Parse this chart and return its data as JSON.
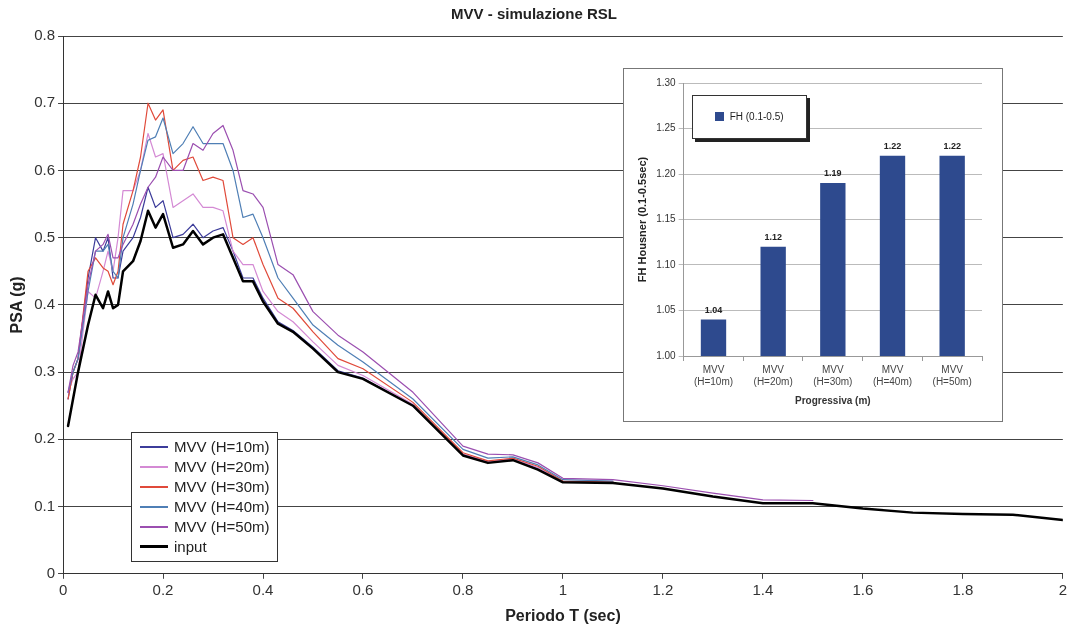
{
  "chart_data": [
    {
      "type": "line",
      "title": "MVV - simulazione RSL",
      "xlabel": "Periodo T (sec)",
      "ylabel": "PSA (g)",
      "x": [
        0.01,
        0.02,
        0.03,
        0.05,
        0.065,
        0.08,
        0.09,
        0.1,
        0.11,
        0.12,
        0.14,
        0.155,
        0.17,
        0.185,
        0.2,
        0.22,
        0.24,
        0.26,
        0.28,
        0.3,
        0.32,
        0.34,
        0.36,
        0.38,
        0.4,
        0.43,
        0.46,
        0.5,
        0.55,
        0.6,
        0.7,
        0.8,
        0.85,
        0.9,
        0.95,
        1.0,
        1.1,
        1.2,
        1.3,
        1.4,
        1.5,
        1.6,
        1.7,
        1.8,
        1.9,
        2.0
      ],
      "series": [
        {
          "name": "MVV (H=10m)",
          "color": "#3c3c9a",
          "values": [
            0.26,
            0.3,
            0.32,
            0.44,
            0.5,
            0.48,
            0.5,
            0.44,
            0.44,
            0.48,
            0.5,
            0.53,
            0.575,
            0.545,
            0.555,
            0.5,
            0.505,
            0.52,
            0.5,
            0.51,
            0.515,
            0.48,
            0.44,
            0.44,
            0.41,
            0.375,
            0.362,
            0.337,
            0.302,
            0.291,
            0.25,
            0.177,
            0.166,
            0.17,
            0.156,
            0.137,
            0.136,
            null,
            null,
            null,
            null,
            null,
            null,
            null,
            null,
            null
          ]
        },
        {
          "name": "MVV (H=20m)",
          "color": "#d48ad4",
          "values": [
            0.27,
            0.29,
            0.3,
            0.42,
            0.41,
            0.45,
            0.48,
            0.45,
            0.5,
            0.57,
            0.57,
            0.6,
            0.655,
            0.62,
            0.625,
            0.545,
            0.555,
            0.565,
            0.545,
            0.545,
            0.54,
            0.48,
            0.46,
            0.46,
            0.42,
            0.39,
            0.375,
            0.345,
            0.31,
            0.295,
            0.252,
            0.178,
            0.167,
            0.171,
            0.158,
            0.137,
            0.136,
            null,
            null,
            null,
            null,
            null,
            null,
            null,
            null,
            null
          ]
        },
        {
          "name": "MVV (H=30m)",
          "color": "#e04a3a",
          "values": [
            0.26,
            0.3,
            0.32,
            0.45,
            0.47,
            0.455,
            0.45,
            0.43,
            0.45,
            0.52,
            0.57,
            0.62,
            0.7,
            0.675,
            0.69,
            0.6,
            0.615,
            0.62,
            0.585,
            0.59,
            0.585,
            0.5,
            0.49,
            0.5,
            0.46,
            0.41,
            0.395,
            0.36,
            0.32,
            0.305,
            0.255,
            0.18,
            0.168,
            0.172,
            0.16,
            0.138,
            0.137,
            null,
            null,
            null,
            null,
            null,
            null,
            null,
            null,
            null
          ]
        },
        {
          "name": "MVV (H=40m)",
          "color": "#4f7fb5",
          "values": [
            0.27,
            0.3,
            0.32,
            0.42,
            0.48,
            0.48,
            0.49,
            0.45,
            0.44,
            0.5,
            0.55,
            0.6,
            0.645,
            0.65,
            0.678,
            0.625,
            0.64,
            0.665,
            0.64,
            0.64,
            0.64,
            0.6,
            0.53,
            0.535,
            0.5,
            0.44,
            0.41,
            0.37,
            0.34,
            0.315,
            0.26,
            0.185,
            0.172,
            0.174,
            0.162,
            0.14,
            0.138,
            null,
            null,
            null,
            null,
            null,
            null,
            null,
            null,
            null
          ]
        },
        {
          "name": "MVV (H=50m)",
          "color": "#9b4fb0",
          "values": [
            0.27,
            0.31,
            0.33,
            0.43,
            0.48,
            0.49,
            0.505,
            0.47,
            0.47,
            0.49,
            0.52,
            0.55,
            0.575,
            0.59,
            0.62,
            0.6,
            0.6,
            0.64,
            0.63,
            0.655,
            0.667,
            0.63,
            0.57,
            0.565,
            0.545,
            0.46,
            0.445,
            0.39,
            0.355,
            0.33,
            0.27,
            0.19,
            0.178,
            0.177,
            0.165,
            0.142,
            0.14,
            0.131,
            0.12,
            0.11,
            0.109,
            null,
            null,
            null,
            null,
            null
          ]
        },
        {
          "name": "input",
          "color": "#000000",
          "values": [
            0.22,
            0.26,
            0.3,
            0.37,
            0.415,
            0.395,
            0.42,
            0.395,
            0.4,
            0.45,
            0.465,
            0.495,
            0.54,
            0.515,
            0.535,
            0.485,
            0.49,
            0.51,
            0.49,
            0.5,
            0.505,
            0.47,
            0.435,
            0.435,
            0.405,
            0.372,
            0.36,
            0.335,
            0.3,
            0.29,
            0.25,
            0.176,
            0.165,
            0.169,
            0.155,
            0.136,
            0.135,
            0.127,
            0.115,
            0.105,
            0.105,
            0.097,
            0.091,
            0.089,
            0.088,
            0.08
          ]
        }
      ],
      "xlim": [
        0,
        2
      ],
      "xticks": [
        0,
        0.2,
        0.4,
        0.6,
        0.8,
        1,
        1.2,
        1.4,
        1.6,
        1.8,
        2
      ],
      "ylim": [
        0,
        0.8
      ],
      "yticks": [
        0,
        0.1,
        0.2,
        0.3,
        0.4,
        0.5,
        0.6,
        0.7,
        0.8
      ],
      "grid": "y",
      "legend": "bottom left",
      "marker": "none",
      "line_style": "solid"
    },
    {
      "type": "bar",
      "xlabel": "Progressiva (m)",
      "ylabel": "FH Housner (0.1-0.5sec)",
      "categories": [
        "MVV (H=10m)",
        "MVV (H=20m)",
        "MVV (H=30m)",
        "MVV (H=40m)",
        "MVV (H=50m)"
      ],
      "series": [
        {
          "name": "FH (0.1-0.5)",
          "color": "#2e4a8e",
          "values": [
            1.04,
            1.12,
            1.19,
            1.22,
            1.22
          ]
        }
      ],
      "ylim": [
        1.0,
        1.3
      ],
      "yticks": [
        {
          "value": 1.0,
          "label": "1.00"
        },
        {
          "value": 1.05,
          "label": "1.05"
        },
        {
          "value": 1.1,
          "label": "1.10"
        },
        {
          "value": 1.15,
          "label": "1.15"
        },
        {
          "value": 1.2,
          "label": "1.20"
        },
        {
          "value": 1.25,
          "label": "1.25"
        },
        {
          "value": 1.3,
          "label": "1.30"
        }
      ],
      "grid": "y",
      "legend": "top left",
      "data_labels": true
    }
  ]
}
